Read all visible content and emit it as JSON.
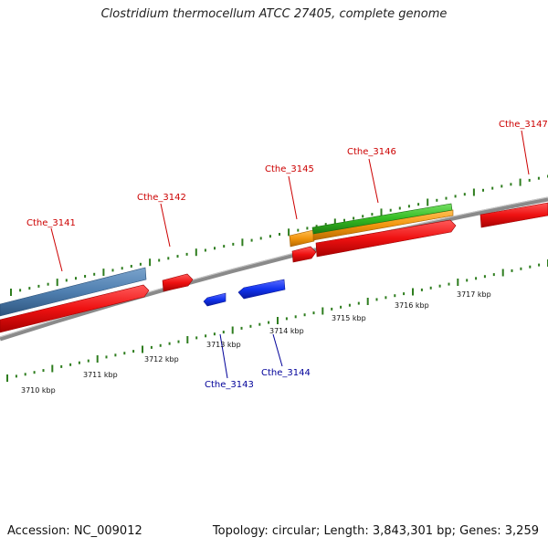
{
  "title": "Clostridium thermocellum ATCC 27405, complete genome",
  "footer": {
    "accession": "Accession: NC_009012",
    "topology": "Topology: circular; Length: 3,843,301 bp; Genes: 3,259"
  },
  "colors": {
    "backbone": "#888888",
    "ticks": "#2e7d1e",
    "gene_red": "#ee1111",
    "gene_blue": "#1133ee",
    "gene_steelblue": "#4f7fb0",
    "gene_orange": "#f2960f",
    "gene_green": "#33bb22",
    "label_red": "#cc0000",
    "label_blue": "#000099"
  },
  "scale": {
    "unit": "kbp",
    "ticks": [
      {
        "label": "3710 kbp"
      },
      {
        "label": "3711 kbp"
      },
      {
        "label": "3712 kbp"
      },
      {
        "label": "3713 kbp"
      },
      {
        "label": "3714 kbp"
      },
      {
        "label": "3715 kbp"
      },
      {
        "label": "3716 kbp"
      },
      {
        "label": "3717 kbp"
      }
    ]
  },
  "gene_labels": [
    {
      "name": "Cthe_3141",
      "strand": "forward"
    },
    {
      "name": "Cthe_3142",
      "strand": "forward"
    },
    {
      "name": "Cthe_3145",
      "strand": "forward"
    },
    {
      "name": "Cthe_3146",
      "strand": "forward"
    },
    {
      "name": "Cthe_3147",
      "strand": "forward"
    },
    {
      "name": "Cthe_3143",
      "strand": "reverse"
    },
    {
      "name": "Cthe_3144",
      "strand": "reverse"
    }
  ]
}
